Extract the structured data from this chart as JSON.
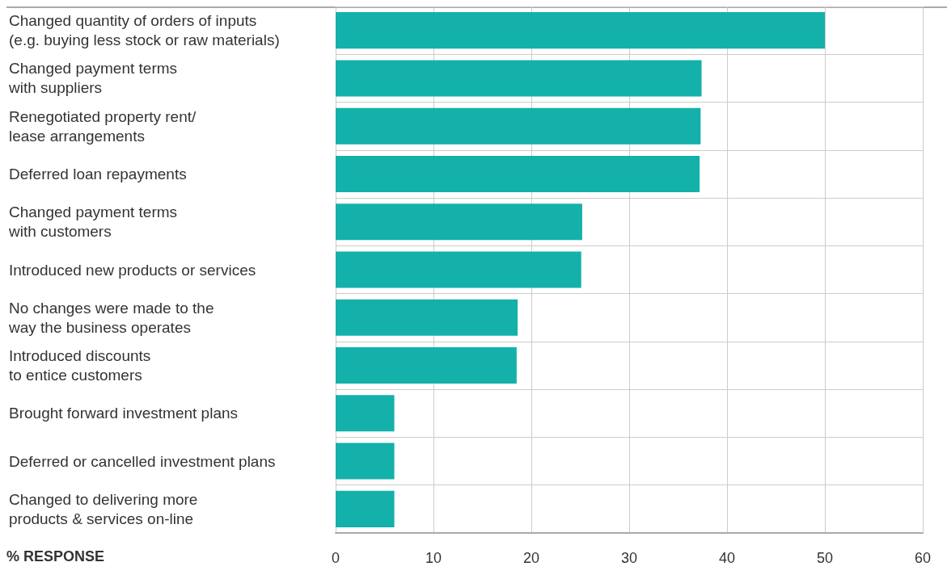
{
  "chart_data": {
    "type": "bar",
    "orientation": "horizontal",
    "xlabel": "% RESPONSE",
    "categories": [
      "Changed quantity of orders of inputs\n(e.g. buying less stock or raw materials)",
      "Changed payment terms\nwith suppliers",
      "Renegotiated property rent/\nlease arrangements",
      "Deferred loan repayments",
      "Changed payment terms\nwith customers",
      "Introduced new products or services",
      "No changes were made to the\nway the business operates",
      "Introduced discounts\nto entice customers",
      "Brought forward investment plans",
      "Deferred or cancelled investment plans",
      "Changed to delivering more\nproducts & services on-line"
    ],
    "values": [
      50,
      37.4,
      37.3,
      37.2,
      25.2,
      25.1,
      18.6,
      18.5,
      6,
      6,
      6
    ],
    "color": "#14b1aa",
    "xlim": [
      0,
      60
    ],
    "xticks": [
      0,
      10,
      20,
      30,
      40,
      50,
      60
    ],
    "grid": true
  }
}
